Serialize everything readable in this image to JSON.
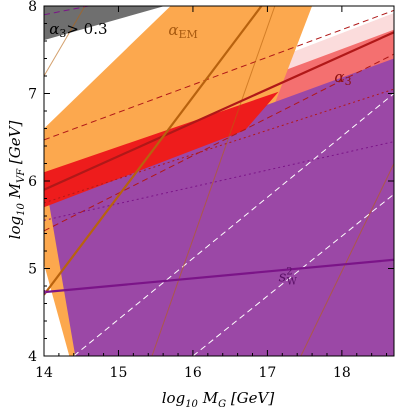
{
  "chart_data": {
    "type": "area",
    "xlabel": "log10 MG [GeV]",
    "ylabel": "log10 MVF [GeV]",
    "xlim": [
      14,
      18.7
    ],
    "ylim": [
      4,
      8
    ],
    "x_ticks": [
      "14",
      "15",
      "16",
      "17",
      "18"
    ],
    "y_ticks": [
      "4",
      "5",
      "6",
      "7",
      "8"
    ],
    "colors": {
      "orange": "#fca84e",
      "purple": "#9b48a6",
      "gray": "#6f6f6f",
      "light_red": "#fbdcdc",
      "mid_red": "#f47070",
      "red": "#ee1c1c",
      "alpha3_line": "#b01818",
      "alphaEM_line": "#b8620e",
      "sW_line": "#7b1488",
      "sW_axis_point": "#8a2a96"
    },
    "regions": [
      {
        "label": "α3 > 0.3",
        "color": "gray",
        "points": [
          [
            14,
            7.61
          ],
          [
            14,
            8
          ],
          [
            15.62,
            8
          ],
          [
            14,
            7.61
          ]
        ]
      },
      {
        "label": "",
        "color": "light_red",
        "points": [
          [
            14,
            6.38
          ],
          [
            18.7,
            7.92
          ],
          [
            18.7,
            6.72
          ],
          [
            14,
            5.15
          ]
        ]
      },
      {
        "label": "",
        "color": "mid_red",
        "points": [
          [
            14,
            6.24
          ],
          [
            18.7,
            7.73
          ],
          [
            18.7,
            6.97
          ],
          [
            14,
            5.47
          ]
        ]
      },
      {
        "label": "αEM",
        "color": "orange",
        "points": [
          [
            14,
            6.6
          ],
          [
            14,
            5.05
          ],
          [
            14.34,
            4
          ],
          [
            15.8,
            4
          ],
          [
            17.6,
            8
          ],
          [
            15.7,
            8
          ]
        ]
      },
      {
        "label": "s²W",
        "color": "purple",
        "points": [
          [
            14,
            6.08
          ],
          [
            14,
            5.94
          ],
          [
            18.7,
            7.4
          ],
          [
            18.7,
            4
          ],
          [
            14.42,
            4
          ]
        ]
      },
      {
        "label": "",
        "color": "red",
        "points": [
          [
            14,
            6.1
          ],
          [
            17.15,
            7.02
          ],
          [
            16.7,
            6.58
          ],
          [
            14,
            5.7
          ]
        ]
      }
    ],
    "lines": [
      {
        "name": "α3",
        "color": "alpha3_line",
        "points": [
          [
            14,
            5.9
          ],
          [
            18.7,
            7.7
          ]
        ]
      },
      {
        "name": "αEM",
        "color": "alphaEM_line",
        "points": [
          [
            14,
            4.7
          ],
          [
            16.92,
            8
          ]
        ]
      },
      {
        "name": "s²W",
        "color": "sW_line",
        "points": [
          [
            14,
            4.73
          ],
          [
            18.7,
            5.1
          ]
        ]
      }
    ],
    "guide_lines": [
      {
        "color": "alpha3_line",
        "style": "dashed",
        "points": [
          [
            14,
            6.47
          ],
          [
            18.7,
            7.95
          ]
        ]
      },
      {
        "color": "alpha3_line",
        "style": "dashed",
        "points": [
          [
            14,
            5.43
          ],
          [
            18.7,
            7.45
          ]
        ]
      },
      {
        "color": "alpha3_line",
        "style": "dotted",
        "points": [
          [
            14,
            5.75
          ],
          [
            18.7,
            7.05
          ]
        ]
      },
      {
        "color": "sW_line",
        "style": "dotted",
        "points": [
          [
            14,
            5.55
          ],
          [
            18.7,
            6.45
          ]
        ]
      },
      {
        "color": "sW_line",
        "style": "dashed",
        "points": [
          [
            14,
            7.9
          ],
          [
            15.2,
            8.1
          ]
        ]
      },
      {
        "color": "white",
        "style": "dashed",
        "points": [
          [
            14.4,
            4
          ],
          [
            18.7,
            7.0
          ]
        ]
      },
      {
        "color": "white",
        "style": "dashed",
        "points": [
          [
            16.0,
            4
          ],
          [
            18.7,
            5.85
          ]
        ]
      },
      {
        "color": "alphaEM_line",
        "style": "solid-thin",
        "points": [
          [
            14,
            7.2
          ],
          [
            14.55,
            8
          ]
        ]
      },
      {
        "color": "alphaEM_line",
        "style": "solid-thin",
        "points": [
          [
            15.45,
            4
          ],
          [
            17.1,
            8
          ]
        ]
      },
      {
        "color": "alphaEM_line",
        "style": "solid-thin",
        "points": [
          [
            17.45,
            4
          ],
          [
            18.7,
            6.2
          ]
        ]
      }
    ],
    "annotations": [
      {
        "text": "α3> 0.3",
        "x": 14.07,
        "y": 7.68,
        "color": "#000000"
      },
      {
        "text": "αEM",
        "x": 15.67,
        "y": 7.67,
        "color": "#a85a10"
      },
      {
        "text": "α3",
        "x": 17.9,
        "y": 7.13,
        "color": "#8b1010"
      },
      {
        "text": "s²W",
        "x": 17.15,
        "y": 4.85,
        "color": "#5a1066"
      }
    ],
    "grid": false
  }
}
